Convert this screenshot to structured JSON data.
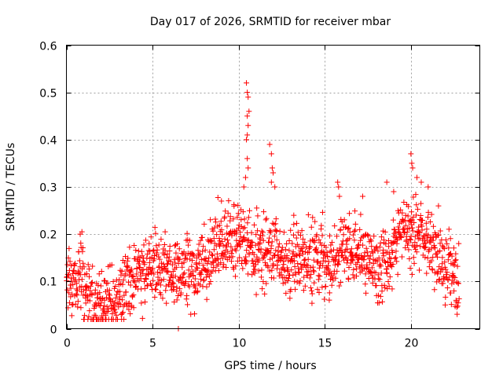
{
  "chart_data": {
    "type": "scatter",
    "title": "Day 017 of 2026, SRMTID for receiver mbar",
    "xlabel": "GPS time / hours",
    "ylabel": "SRMTID / TECUs",
    "xlim": [
      0,
      24
    ],
    "ylim": [
      0,
      0.6
    ],
    "xticks": [
      0,
      5,
      10,
      15,
      20
    ],
    "xtick_labels": [
      "0",
      "5",
      "10",
      "15",
      "20"
    ],
    "yticks": [
      0,
      0.1,
      0.2,
      0.3,
      0.4,
      0.5,
      0.6
    ],
    "ytick_labels": [
      "0",
      "0.1",
      "0.2",
      "0.3",
      "0.4",
      "0.5",
      "0.6"
    ],
    "grid": true,
    "marker": "plus",
    "color": "#ff0000",
    "series": [
      {
        "name": "SRMTID",
        "profile_points": [
          [
            0.0,
            0.11
          ],
          [
            0.5,
            0.09
          ],
          [
            0.8,
            0.13
          ],
          [
            1.0,
            0.09
          ],
          [
            1.5,
            0.05
          ],
          [
            2.0,
            0.055
          ],
          [
            2.5,
            0.045
          ],
          [
            3.0,
            0.06
          ],
          [
            3.5,
            0.1
          ],
          [
            4.0,
            0.115
          ],
          [
            4.5,
            0.12
          ],
          [
            5.0,
            0.13
          ],
          [
            5.5,
            0.12
          ],
          [
            6.0,
            0.12
          ],
          [
            6.5,
            0.12
          ],
          [
            7.0,
            0.13
          ],
          [
            7.5,
            0.12
          ],
          [
            8.0,
            0.14
          ],
          [
            8.5,
            0.16
          ],
          [
            9.0,
            0.19
          ],
          [
            9.5,
            0.18
          ],
          [
            10.0,
            0.19
          ],
          [
            10.5,
            0.17
          ],
          [
            11.0,
            0.16
          ],
          [
            11.5,
            0.16
          ],
          [
            12.0,
            0.18
          ],
          [
            12.5,
            0.14
          ],
          [
            13.0,
            0.14
          ],
          [
            13.5,
            0.15
          ],
          [
            14.0,
            0.15
          ],
          [
            14.5,
            0.14
          ],
          [
            15.0,
            0.15
          ],
          [
            15.5,
            0.14
          ],
          [
            16.0,
            0.17
          ],
          [
            16.5,
            0.17
          ],
          [
            17.0,
            0.17
          ],
          [
            17.5,
            0.15
          ],
          [
            18.0,
            0.13
          ],
          [
            18.5,
            0.13
          ],
          [
            19.0,
            0.16
          ],
          [
            19.5,
            0.2
          ],
          [
            20.0,
            0.19
          ],
          [
            20.5,
            0.21
          ],
          [
            21.0,
            0.18
          ],
          [
            21.5,
            0.15
          ],
          [
            22.0,
            0.13
          ],
          [
            22.5,
            0.11
          ],
          [
            22.8,
            0.1
          ]
        ],
        "spread": 0.035,
        "spikes": [
          [
            10.45,
            0.52
          ],
          [
            10.5,
            0.5
          ],
          [
            10.55,
            0.49
          ],
          [
            10.6,
            0.46
          ],
          [
            10.5,
            0.45
          ],
          [
            10.55,
            0.43
          ],
          [
            10.5,
            0.41
          ],
          [
            10.45,
            0.4
          ],
          [
            10.5,
            0.36
          ],
          [
            10.55,
            0.34
          ],
          [
            10.4,
            0.32
          ],
          [
            10.3,
            0.3
          ],
          [
            11.8,
            0.39
          ],
          [
            11.9,
            0.37
          ],
          [
            11.95,
            0.34
          ],
          [
            12.0,
            0.33
          ],
          [
            11.9,
            0.31
          ],
          [
            12.1,
            0.3
          ],
          [
            15.75,
            0.31
          ],
          [
            15.8,
            0.3
          ],
          [
            15.85,
            0.28
          ],
          [
            20.0,
            0.37
          ],
          [
            20.05,
            0.35
          ],
          [
            20.1,
            0.34
          ],
          [
            20.35,
            0.32
          ],
          [
            20.6,
            0.31
          ],
          [
            21.0,
            0.3
          ],
          [
            9.0,
            0.27
          ],
          [
            18.6,
            0.31
          ],
          [
            19.0,
            0.29
          ],
          [
            17.2,
            0.28
          ],
          [
            6.5,
            0.0
          ],
          [
            0.8,
            0.2
          ],
          [
            0.9,
            0.205
          ],
          [
            13.2,
            0.24
          ],
          [
            21.6,
            0.26
          ],
          [
            22.5,
            0.08
          ]
        ],
        "xrange": [
          0,
          22.8
        ]
      }
    ]
  }
}
